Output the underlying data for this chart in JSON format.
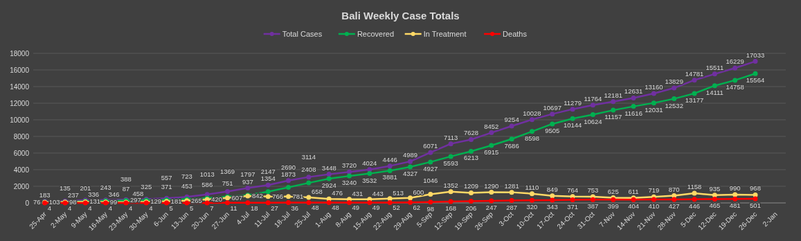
{
  "chart_data": {
    "type": "line",
    "title": "Bali Weekly Case Totals",
    "categories": [
      "25-Apr",
      "2-May",
      "9-May",
      "16-May",
      "23-May",
      "30-May",
      "6-Jun",
      "13-Jun",
      "20-Jun",
      "27-Jun",
      "4-Jul",
      "11-Jul",
      "18-Jul",
      "25-Jul",
      "1-Aug",
      "8-Aug",
      "15-Aug",
      "22-Aug",
      "29-Aug",
      "5-Sep",
      "12-Sep",
      "19-Sep",
      "26-Sep",
      "3-Oct",
      "10-Oct",
      "17-Oct",
      "24-Oct",
      "31-Oct",
      "7-Nov",
      "14-Nov",
      "21-Nov",
      "28-Nov",
      "5-Dec",
      "12-Dec",
      "19-Dec",
      "26-Dec",
      "2-Jan"
    ],
    "series": [
      {
        "name": "Total Cases",
        "color": "#7030a0",
        "values": [
          183,
          237,
          336,
          346,
          388,
          458,
          557,
          723,
          1013,
          1369,
          1797,
          2147,
          2690,
          3114,
          3448,
          3720,
          4024,
          4446,
          4989,
          6071,
          7113,
          7628,
          8452,
          9254,
          10028,
          10697,
          11279,
          11764,
          12181,
          12631,
          13160,
          13829,
          14781,
          15511,
          16229,
          17033,
          null
        ]
      },
      {
        "name": "Recovered",
        "color": "#00b050",
        "values": [
          103,
          135,
          201,
          243,
          297,
          325,
          371,
          453,
          586,
          751,
          937,
          1354,
          1873,
          2408,
          2924,
          3240,
          3532,
          3881,
          4327,
          4927,
          5593,
          6213,
          6915,
          7686,
          8598,
          9505,
          10144,
          10624,
          11157,
          11616,
          12031,
          12532,
          13177,
          14111,
          14758,
          15564,
          null
        ]
      },
      {
        "name": "In Treatment",
        "color": "#ffd966",
        "values": [
          76,
          98,
          131,
          99,
          87,
          129,
          181,
          265,
          420,
          607,
          842,
          766,
          781,
          658,
          476,
          431,
          443,
          513,
          600,
          1046,
          1352,
          1209,
          1290,
          1281,
          1110,
          849,
          764,
          753,
          625,
          611,
          719,
          870,
          1158,
          935,
          990,
          968,
          null
        ]
      },
      {
        "name": "Deaths",
        "color": "#ff0000",
        "values": [
          4,
          4,
          4,
          4,
          4,
          4,
          5,
          5,
          7,
          11,
          18,
          27,
          36,
          48,
          48,
          49,
          49,
          52,
          62,
          98,
          168,
          206,
          247,
          287,
          320,
          343,
          371,
          387,
          399,
          404,
          410,
          427,
          446,
          465,
          481,
          501,
          null
        ]
      }
    ],
    "ylim": [
      0,
      18000
    ],
    "yticks": [
      0,
      2000,
      4000,
      6000,
      8000,
      10000,
      12000,
      14000,
      16000,
      18000
    ],
    "grid": "y",
    "legend": "top",
    "marker": "circle",
    "line_style": "solid",
    "data_labels": true
  }
}
